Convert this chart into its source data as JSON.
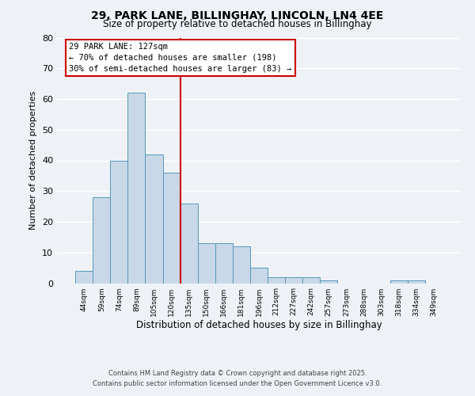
{
  "title": "29, PARK LANE, BILLINGHAY, LINCOLN, LN4 4EE",
  "subtitle": "Size of property relative to detached houses in Billinghay",
  "xlabel": "Distribution of detached houses by size in Billinghay",
  "ylabel": "Number of detached properties",
  "bar_color": "#c8d8e8",
  "bar_edge_color": "#5599bb",
  "categories": [
    "44sqm",
    "59sqm",
    "74sqm",
    "89sqm",
    "105sqm",
    "120sqm",
    "135sqm",
    "150sqm",
    "166sqm",
    "181sqm",
    "196sqm",
    "212sqm",
    "227sqm",
    "242sqm",
    "257sqm",
    "273sqm",
    "288sqm",
    "303sqm",
    "318sqm",
    "334sqm",
    "349sqm"
  ],
  "values": [
    4,
    28,
    40,
    62,
    42,
    36,
    26,
    13,
    13,
    12,
    5,
    2,
    2,
    2,
    1,
    0,
    0,
    0,
    1,
    1,
    0
  ],
  "vline_x": 5.5,
  "vline_color": "#cc0000",
  "annotation_title": "29 PARK LANE: 127sqm",
  "annotation_line1": "← 70% of detached houses are smaller (198)",
  "annotation_line2": "30% of semi-detached houses are larger (83) →",
  "annotation_box_color": "#ffffff",
  "annotation_box_edge": "#cc0000",
  "ylim": [
    0,
    80
  ],
  "yticks": [
    0,
    10,
    20,
    30,
    40,
    50,
    60,
    70,
    80
  ],
  "background_color": "#eef2f7",
  "grid_color": "#ffffff",
  "footer1": "Contains HM Land Registry data © Crown copyright and database right 2025.",
  "footer2": "Contains public sector information licensed under the Open Government Licence v3.0."
}
